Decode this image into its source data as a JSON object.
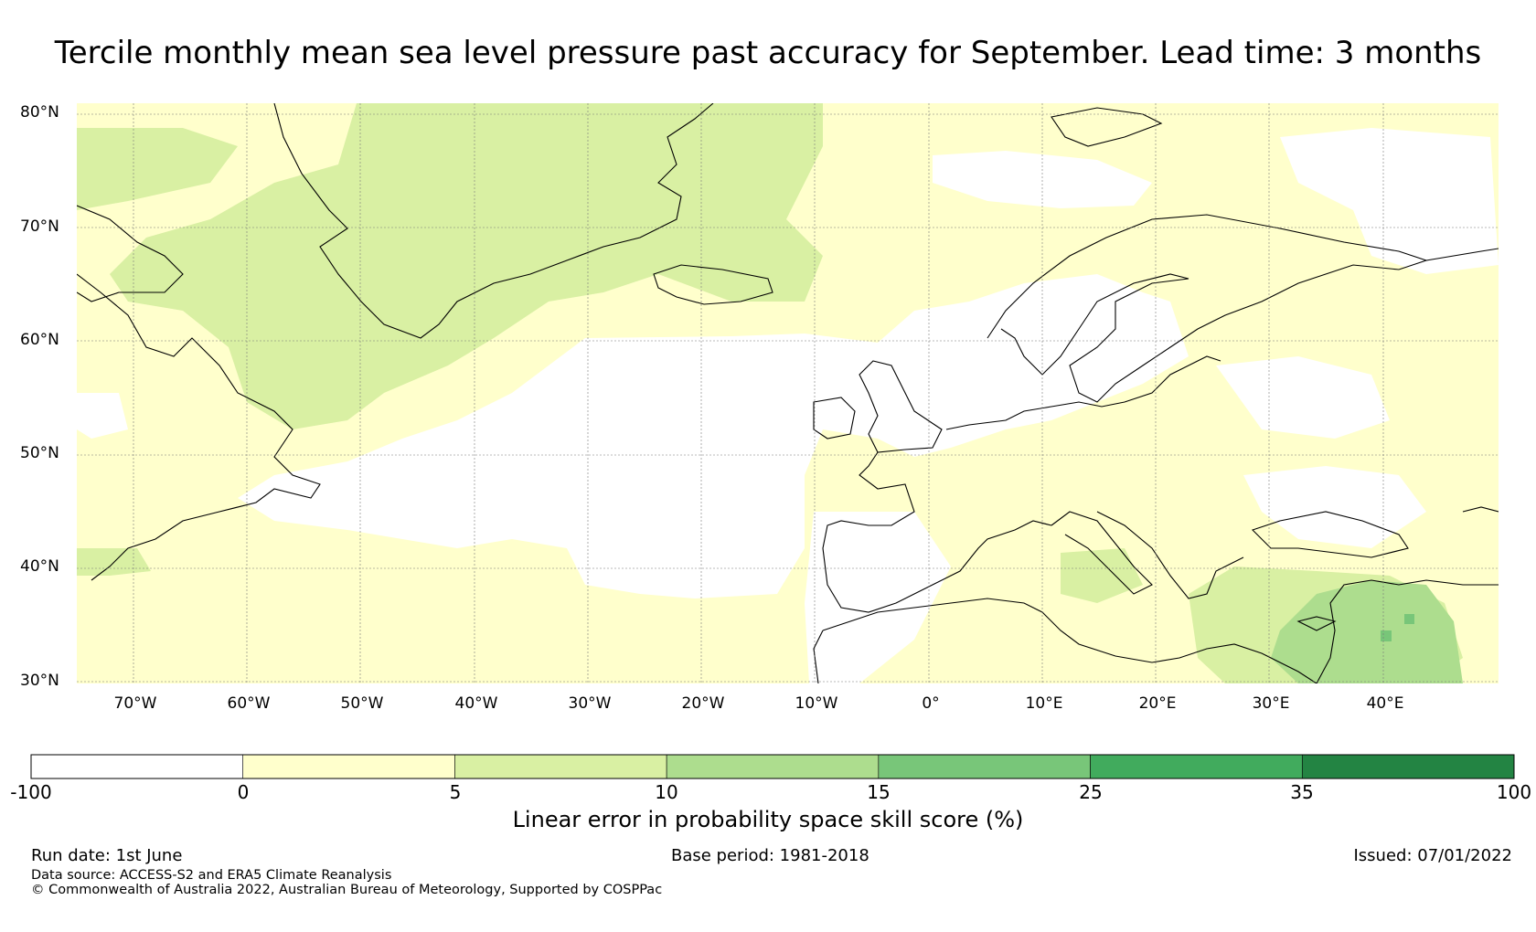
{
  "title": "Tercile monthly mean sea level pressure past accuracy for September. Lead time: 3 months",
  "map": {
    "lat_labels": [
      "80°N",
      "70°N",
      "60°N",
      "50°N",
      "40°N",
      "30°N"
    ],
    "lon_labels": [
      "70°W",
      "60°W",
      "50°W",
      "40°W",
      "30°W",
      "20°W",
      "10°W",
      "0°",
      "10°E",
      "20°E",
      "30°E",
      "40°E"
    ],
    "lat_range": [
      30,
      81
    ],
    "lon_range": [
      -75,
      50
    ],
    "grid_lines": true
  },
  "colorbar": {
    "ticks": [
      "-100",
      "0",
      "5",
      "10",
      "15",
      "25",
      "35",
      "100"
    ],
    "colors": [
      "#ffffff",
      "#ffffcc",
      "#d9f0a3",
      "#addd8e",
      "#78c679",
      "#41ab5d",
      "#238443"
    ],
    "title": "Linear error in probability space skill score (%)"
  },
  "footer": {
    "run_date": "Run date: 1st June",
    "base_period": "Base period: 1981-2018",
    "issued": "Issued: 07/01/2022",
    "data_source": "Data source: ACCESS-S2 and ERA5 Climate Reanalysis",
    "copyright": "© Commonwealth of Australia 2022, Australian Bureau of Meteorology, Supported by COSPPac"
  }
}
